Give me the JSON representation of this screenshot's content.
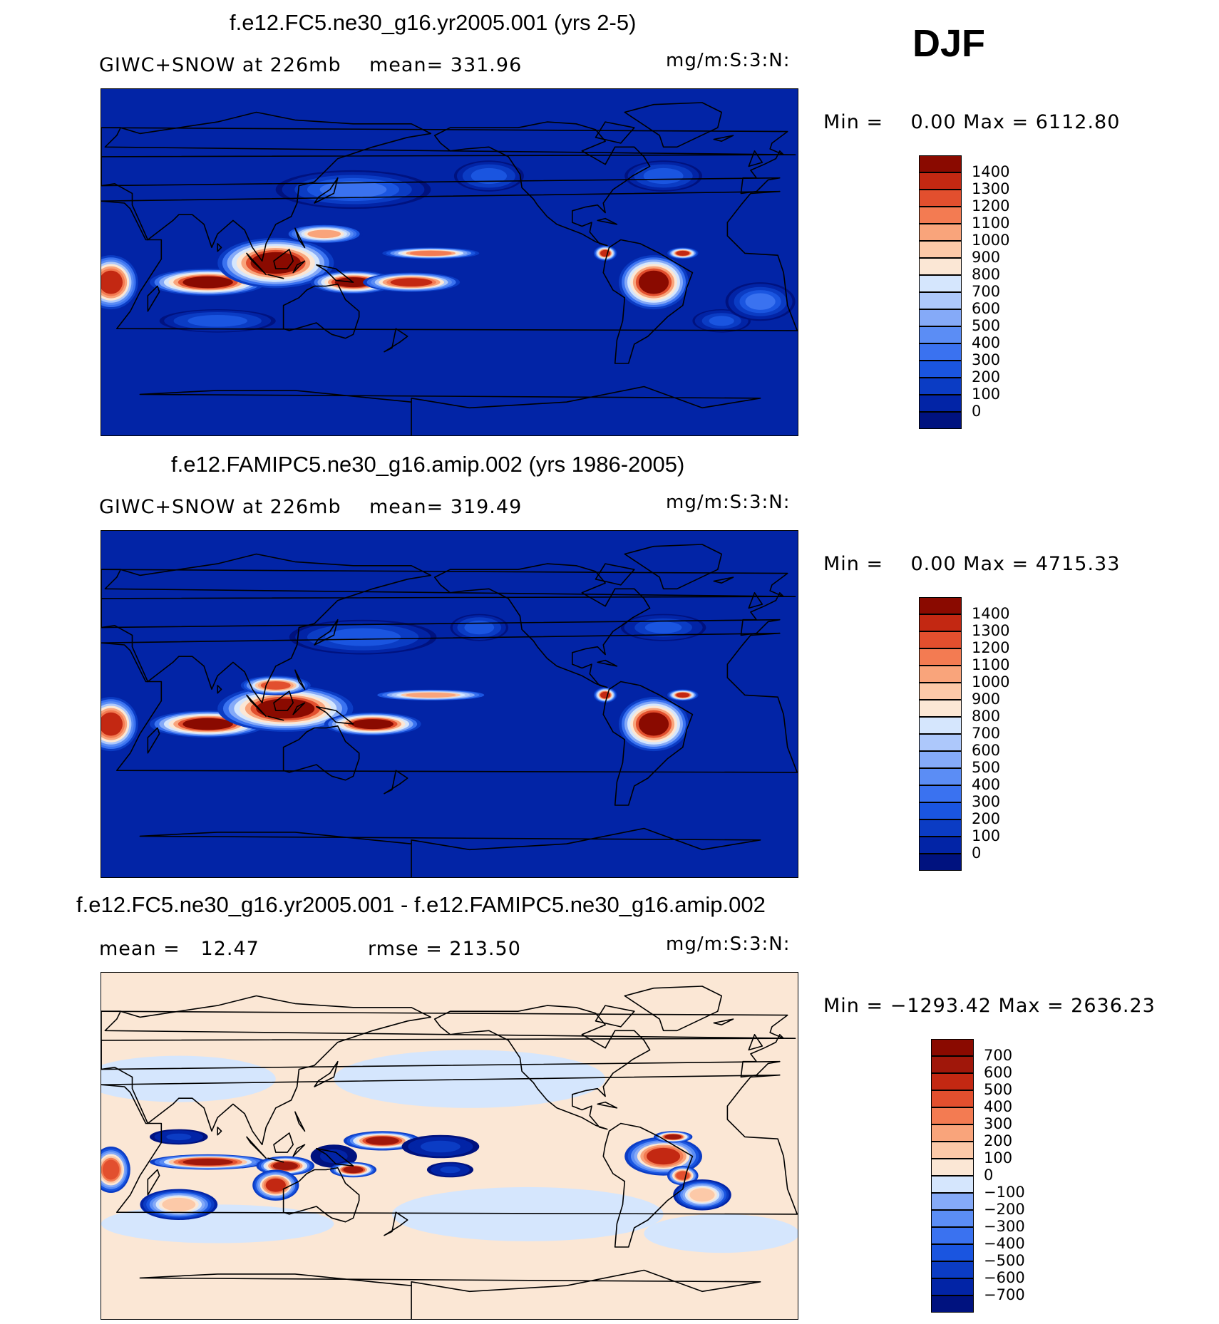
{
  "header": {
    "season": "DJF"
  },
  "panels": [
    {
      "title": "f.e12.FC5.ne30_g16.yr2005.001 (yrs 2-5)",
      "left_text": "GIWC+SNOW at 226mb",
      "stat_text": "mean= 331.96",
      "units": "mg/m:S:3:N:",
      "minmax": "Min =    0.00 Max = 6112.80",
      "field": "model"
    },
    {
      "title": "f.e12.FAMIPC5.ne30_g16.amip.002 (yrs 1986-2005)",
      "left_text": "GIWC+SNOW at 226mb",
      "stat_text": "mean= 319.49",
      "units": "mg/m:S:3:N:",
      "minmax": "Min =    0.00 Max = 4715.33",
      "field": "reference"
    },
    {
      "title": "f.e12.FC5.ne30_g16.yr2005.001 - f.e12.FAMIPC5.ne30_g16.amip.002",
      "left_text": "mean =   12.47",
      "stat_text": "rmse = 213.50",
      "units": "mg/m:S:3:N:",
      "minmax": "Min = −1293.42 Max = 2636.23",
      "field": "difference"
    }
  ],
  "chart_data": [
    {
      "type": "heatmap",
      "title": "f.e12.FC5.ne30_g16.yr2005.001 (yrs 2-5)",
      "variable": "GIWC+SNOW at 226mb",
      "units": "mg/m:S:3:N:",
      "mean": 331.96,
      "min": 0.0,
      "max": 6112.8,
      "colorbar_levels": [
        0,
        100,
        200,
        300,
        400,
        500,
        600,
        700,
        800,
        900,
        1000,
        1100,
        1200,
        1300,
        1400
      ],
      "colorbar_labels": [
        "1400",
        "1300",
        "1200",
        "1100",
        "1000",
        "900",
        "800",
        "700",
        "600",
        "500",
        "400",
        "300",
        "200",
        "100",
        "0"
      ],
      "colors": [
        "#00127f",
        "#0224a6",
        "#0b3cc4",
        "#1a55e0",
        "#3a72f0",
        "#5b8df5",
        "#85aaf8",
        "#adc8fb",
        "#d5e6fd",
        "#fbe7d5",
        "#fcc9a8",
        "#f9a47b",
        "#f37b52",
        "#e24f2e",
        "#c32812",
        "#8a0a00"
      ]
    },
    {
      "type": "heatmap",
      "title": "f.e12.FAMIPC5.ne30_g16.amip.002 (yrs 1986-2005)",
      "variable": "GIWC+SNOW at 226mb",
      "units": "mg/m:S:3:N:",
      "mean": 319.49,
      "min": 0.0,
      "max": 4715.33,
      "colorbar_levels": [
        0,
        100,
        200,
        300,
        400,
        500,
        600,
        700,
        800,
        900,
        1000,
        1100,
        1200,
        1300,
        1400
      ],
      "colorbar_labels": [
        "1400",
        "1300",
        "1200",
        "1100",
        "1000",
        "900",
        "800",
        "700",
        "600",
        "500",
        "400",
        "300",
        "200",
        "100",
        "0"
      ],
      "colors": [
        "#00127f",
        "#0224a6",
        "#0b3cc4",
        "#1a55e0",
        "#3a72f0",
        "#5b8df5",
        "#85aaf8",
        "#adc8fb",
        "#d5e6fd",
        "#fbe7d5",
        "#fcc9a8",
        "#f9a47b",
        "#f37b52",
        "#e24f2e",
        "#c32812",
        "#8a0a00"
      ]
    },
    {
      "type": "heatmap",
      "title": "f.e12.FC5.ne30_g16.yr2005.001 - f.e12.FAMIPC5.ne30_g16.amip.002",
      "variable": "difference",
      "units": "mg/m:S:3:N:",
      "mean": 12.47,
      "rmse": 213.5,
      "min": -1293.42,
      "max": 2636.23,
      "colorbar_levels": [
        -700,
        -600,
        -500,
        -400,
        -300,
        -200,
        -100,
        0,
        100,
        200,
        300,
        400,
        500,
        600,
        700
      ],
      "colorbar_labels": [
        "700",
        "600",
        "500",
        "400",
        "300",
        "200",
        "100",
        "0",
        "−100",
        "−200",
        "−300",
        "−400",
        "−500",
        "−600",
        "−700"
      ],
      "colors": [
        "#00127f",
        "#0224a6",
        "#0b3cc4",
        "#1a55e0",
        "#3a72f0",
        "#5b8df5",
        "#85aaf8",
        "#d5e6fd",
        "#fbe7d5",
        "#fcc9a8",
        "#f9a47b",
        "#f37b52",
        "#e24f2e",
        "#c32812",
        "#a0170a",
        "#8a0a00"
      ]
    }
  ]
}
